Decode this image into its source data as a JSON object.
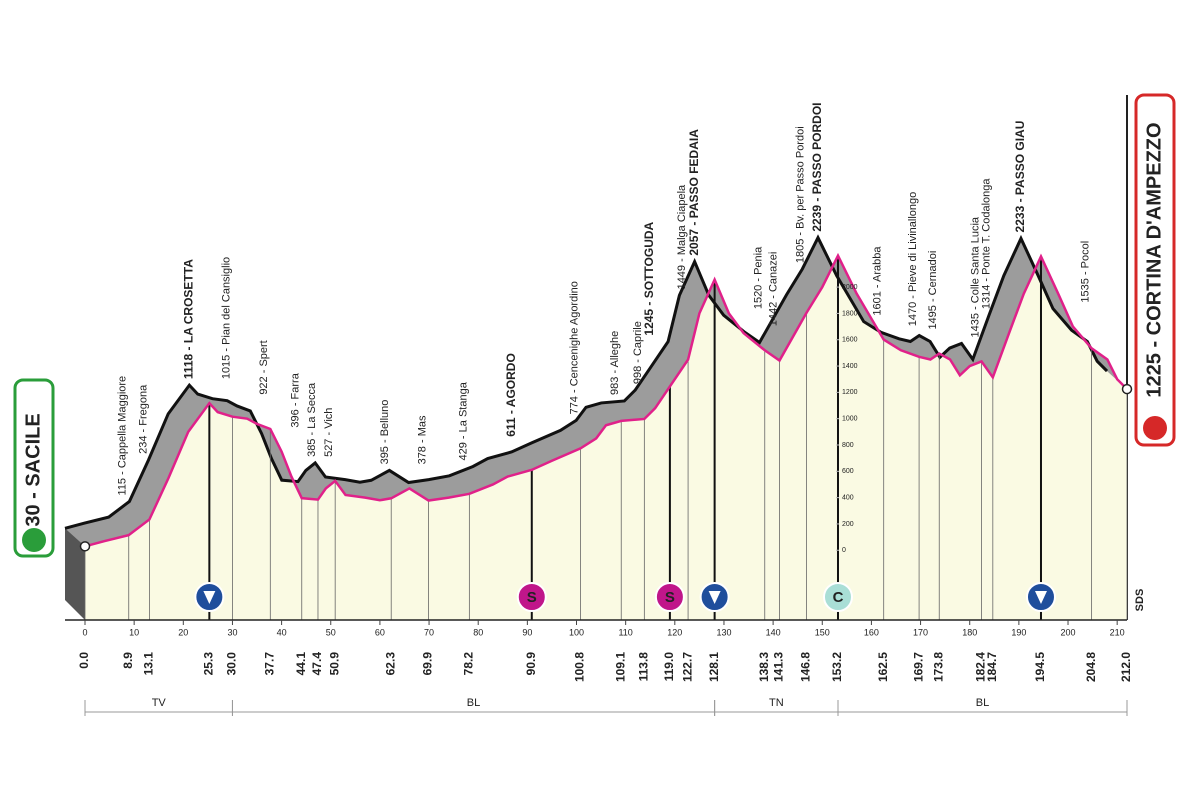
{
  "chart_data": {
    "type": "profile",
    "start": "30 - SACILE",
    "finish": "1225 - CORTINA D'AMPEZZO",
    "x": [
      0,
      4,
      8.9,
      13.1,
      17,
      21,
      25.3,
      27,
      30,
      33,
      35,
      37.7,
      40,
      42,
      44.1,
      47.4,
      49,
      50.9,
      53,
      57,
      60,
      62.3,
      66,
      69.9,
      74,
      78.2,
      83,
      86,
      90.9,
      95,
      100.8,
      104,
      106,
      109.1,
      113.8,
      116,
      119,
      122.7,
      125,
      128.1,
      131,
      134,
      138.3,
      141.3,
      146.8,
      150,
      153.2,
      157,
      162.5,
      166,
      169.7,
      172,
      173.8,
      176,
      178,
      180,
      182.4,
      184.7,
      188,
      191,
      194.5,
      198,
      201,
      204.8,
      208,
      210,
      212
    ],
    "values": [
      30,
      70,
      115,
      234,
      550,
      900,
      1118,
      1050,
      1015,
      1000,
      960,
      922,
      750,
      560,
      396,
      385,
      470,
      527,
      420,
      400,
      380,
      395,
      470,
      378,
      400,
      429,
      500,
      560,
      611,
      680,
      774,
      850,
      950,
      983,
      998,
      1080,
      1245,
      1449,
      1800,
      2057,
      1800,
      1650,
      1520,
      1442,
      1805,
      2000,
      2239,
      1950,
      1601,
      1520,
      1470,
      1450,
      1495,
      1450,
      1330,
      1400,
      1435,
      1314,
      1650,
      1950,
      2233,
      1950,
      1700,
      1535,
      1450,
      1300,
      1225
    ],
    "xlim": [
      0,
      212
    ],
    "ylim": [
      -530,
      2510
    ],
    "xticks": [
      0,
      10,
      20,
      30,
      40,
      50,
      60,
      70,
      80,
      90,
      100,
      110,
      120,
      130,
      140,
      150,
      160,
      170,
      180,
      190,
      200,
      210
    ],
    "yticks": [
      0,
      200,
      400,
      600,
      800,
      1000,
      1200,
      1400,
      1600,
      1800,
      2000
    ],
    "line_color": "#e0218a",
    "waypoints": [
      {
        "km": {
          "value": 0,
          "label": "0.0"
        }
      },
      {
        "km": 8.9,
        "label": "115 - Cappella Maggiore"
      },
      {
        "km": 13.1,
        "label": "234 - Fregona"
      },
      {
        "km": 25.3,
        "label": "1118 - LA CROSETTA",
        "weight": "bold"
      },
      {
        "km": {
          "value": 30,
          "label": "30.0"
        },
        "label": "1015 - Pian del Cansiglio"
      },
      {
        "km": 37.7,
        "label": "922 - Spert"
      },
      {
        "km": 44.1,
        "label": "396 - Farra"
      },
      {
        "km": 47.4,
        "label": "385 - La Secca"
      },
      {
        "km": 50.9,
        "label": "527 - Vich"
      },
      {
        "km": 62.3,
        "label": "395 - Belluno"
      },
      {
        "km": 69.9,
        "label": "378 - Mas"
      },
      {
        "km": 78.2,
        "label": "429 - La Stanga"
      },
      {
        "km": 90.9,
        "label": "611 - AGORDO",
        "weight": "bold"
      },
      {
        "km": 100.8,
        "label": "774 - Cencenighe Agordino"
      },
      {
        "km": 109.1,
        "label": "983 - Alleghe"
      },
      {
        "km": 113.8,
        "label": "998 - Caprile"
      },
      {
        "km": {
          "value": 119,
          "label": "119.0"
        },
        "label": "1245 - SOTTOGUDA",
        "weight": "bold"
      },
      {
        "km": 122.7,
        "label": "1449 - Malga Ciapela"
      },
      {
        "km": 128.1,
        "label": "2057 - PASSO FEDAIA",
        "weight": "bold"
      },
      {
        "km": 138.3,
        "label": "1520 - Penia"
      },
      {
        "km": 141.3,
        "label": "1442 - Canazei"
      },
      {
        "km": 146.8,
        "label": "1805 - Bv. per Passo Pordoi"
      },
      {
        "km": 153.2,
        "label": "2239 - PASSO PORDOI",
        "weight": "bold"
      },
      {
        "km": 162.5,
        "label": "1601 - Arabba"
      },
      {
        "km": 169.7,
        "label": "1470 - Pieve di Livinallongo"
      },
      {
        "km": 173.8,
        "label": "1495 - Cernadoi"
      },
      {
        "km": 182.4,
        "label": "1435 - Colle Santa Lucia"
      },
      {
        "km": 184.7,
        "label": "1314 - Ponte T. Codalonga"
      },
      {
        "km": 194.5,
        "label": "2233 - PASSO GIAU",
        "weight": "bold"
      },
      {
        "km": 204.8,
        "label": "1535 - Pocol"
      },
      {
        "km": {
          "value": 212,
          "label": "212.0"
        }
      }
    ],
    "markers": [
      {
        "km": 25.3,
        "color": "#1f4e9c"
      },
      {
        "km": 90.9,
        "symbol": "S",
        "color": "#c0168a"
      },
      {
        "km": 119,
        "symbol": "S",
        "color": "#c0168a"
      },
      {
        "km": 128.1,
        "color": "#1f4e9c"
      },
      {
        "km": 153.2,
        "symbol": "C",
        "color": "#a9ded6"
      },
      {
        "km": 194.5,
        "color": "#1f4e9c"
      }
    ],
    "regions": [
      {
        "label": "TV",
        "range": [
          0,
          30
        ]
      },
      {
        "label": "BL",
        "range": [
          30,
          128.1
        ]
      },
      {
        "label": "TN",
        "range": [
          128.1,
          153.2
        ]
      },
      {
        "label": "BL",
        "range": [
          153.2,
          212
        ]
      }
    ]
  }
}
